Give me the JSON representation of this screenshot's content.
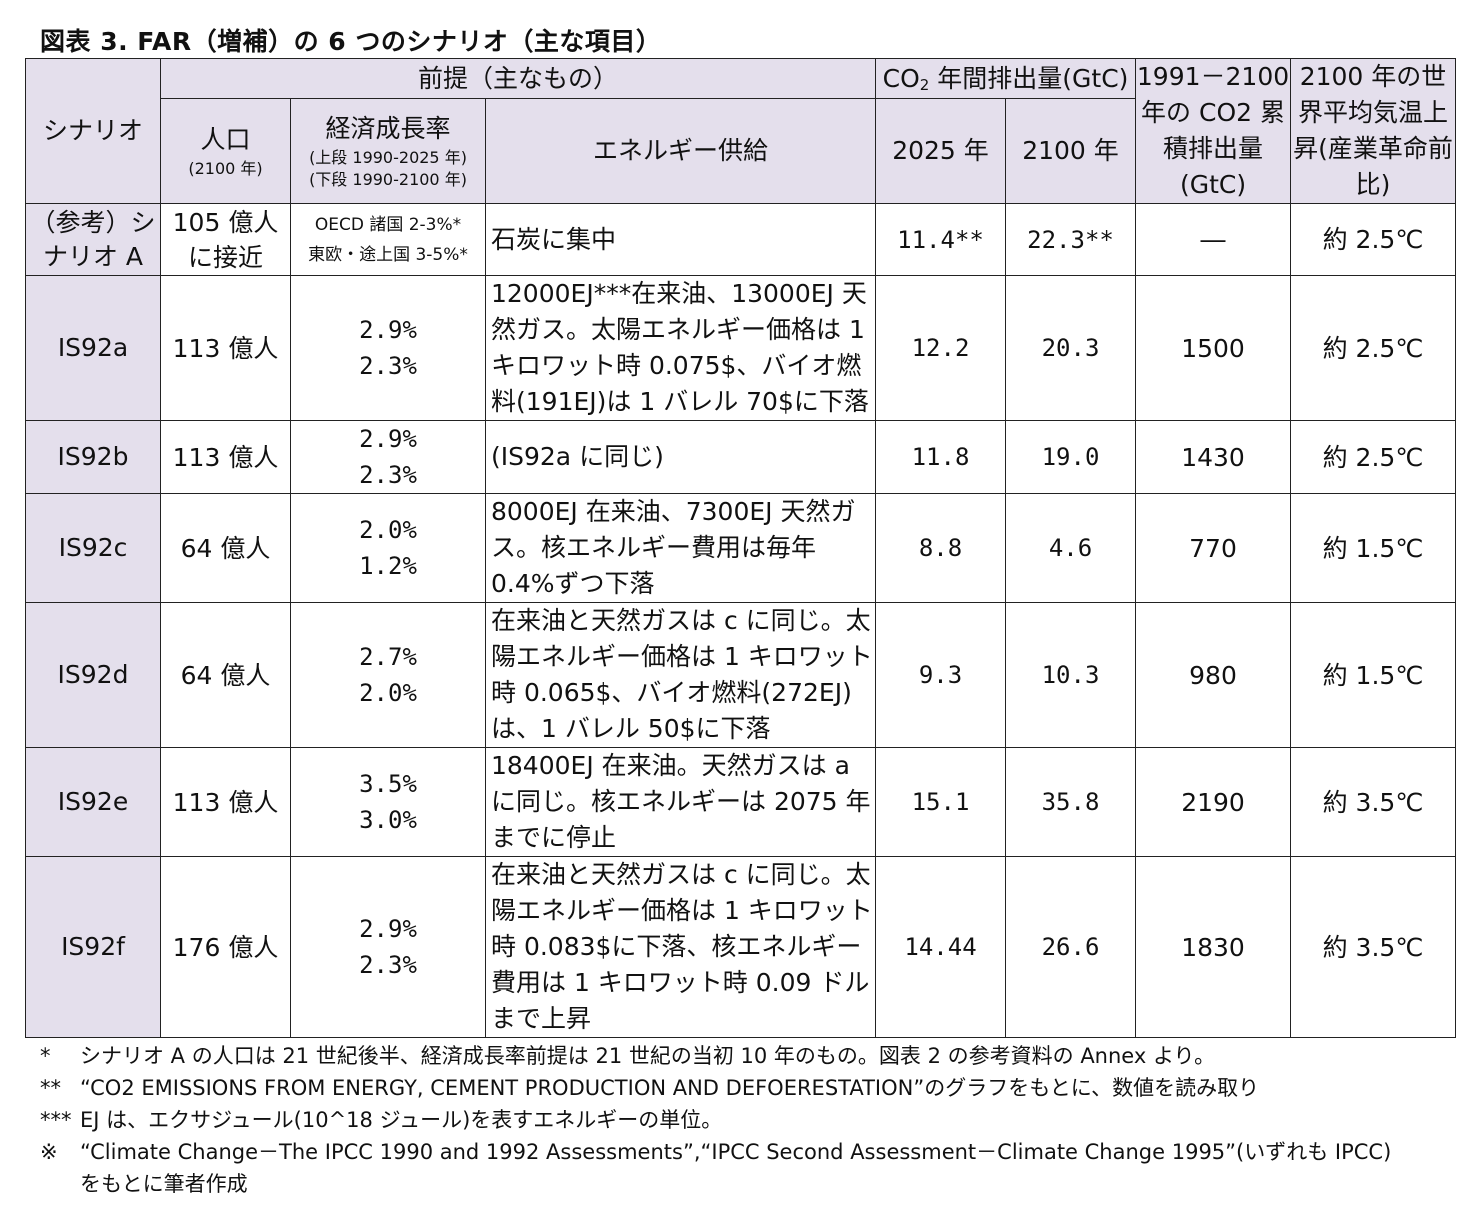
{
  "title": "図表 3. FAR（増補）の 6 つのシナリオ（主な項目）",
  "headers": {
    "scenario": "シナリオ",
    "premise": "前提（主なもの）",
    "population": "人口",
    "population_sub": "(2100 年)",
    "growth": "経済成長率",
    "growth_sub1": "(上段 1990-2025 年)",
    "growth_sub2": "(下段 1990-2100 年)",
    "energy": "エネルギー供給",
    "co2_pre": "CO",
    "co2_subscript": "2",
    "co2_post": " 年間排出量(GtC)",
    "y2025": "2025 年",
    "y2100": "2100 年",
    "cumulative": "1991－2100 年の CO2 累積排出量 (GtC)",
    "temp": "2100 年の世界平均気温上昇(産業革命前比)"
  },
  "rows": [
    {
      "scenario": "（参考）シナリオ A",
      "population": "105 億人に接近",
      "growth1": "OECD 諸国 2-3%*",
      "growth2": "東欧・途上国 3-5%*",
      "energy": "石炭に集中",
      "e2025": "11.4**",
      "e2100": "22.3**",
      "cumulative": "―",
      "temp": "約 2.5℃"
    },
    {
      "scenario": "IS92a",
      "population": "113 億人",
      "growth1": "2.9%",
      "growth2": "2.3%",
      "energy": "12000EJ***在来油、13000EJ 天然ガス。太陽エネルギー価格は 1 キロワット時 0.075$、バイオ燃料(191EJ)は 1 バレル 70$に下落",
      "e2025": "12.2",
      "e2100": "20.3",
      "cumulative": "1500",
      "temp": "約 2.5℃"
    },
    {
      "scenario": "IS92b",
      "population": "113 億人",
      "growth1": "2.9%",
      "growth2": "2.3%",
      "energy": "(IS92a に同じ)",
      "e2025": "11.8",
      "e2100": "19.0",
      "cumulative": "1430",
      "temp": "約 2.5℃"
    },
    {
      "scenario": "IS92c",
      "population": "64 億人",
      "growth1": "2.0%",
      "growth2": "1.2%",
      "energy": "8000EJ 在来油、7300EJ 天然ガス。核エネルギー費用は毎年 0.4%ずつ下落",
      "e2025": "8.8",
      "e2100": "4.6",
      "cumulative": "770",
      "temp": "約 1.5℃"
    },
    {
      "scenario": "IS92d",
      "population": "64 億人",
      "growth1": "2.7%",
      "growth2": "2.0%",
      "energy": "在来油と天然ガスは c に同じ。太陽エネルギー価格は 1 キロワット時 0.065$、バイオ燃料(272EJ)は、1 バレル 50$に下落",
      "e2025": "9.3",
      "e2100": "10.3",
      "cumulative": "980",
      "temp": "約 1.5℃"
    },
    {
      "scenario": "IS92e",
      "population": "113 億人",
      "growth1": "3.5%",
      "growth2": "3.0%",
      "energy": "18400EJ 在来油。天然ガスは a に同じ。核エネルギーは 2075 年までに停止",
      "e2025": "15.1",
      "e2100": "35.8",
      "cumulative": "2190",
      "temp": "約 3.5℃"
    },
    {
      "scenario": "IS92f",
      "population": "176 億人",
      "growth1": "2.9%",
      "growth2": "2.3%",
      "energy": "在来油と天然ガスは c に同じ。太陽エネルギー価格は 1 キロワット時 0.083$に下落、核エネルギー費用は 1 キロワット時 0.09 ドルまで上昇",
      "e2025": "14.44",
      "e2100": "26.6",
      "cumulative": "1830",
      "temp": "約 3.5℃"
    }
  ],
  "notes": [
    {
      "mark": "*",
      "text": "シナリオ A の人口は 21 世紀後半、経済成長率前提は 21 世紀の当初 10 年のもの。図表 2 の参考資料の Annex より。"
    },
    {
      "mark": "**",
      "text": "“CO2 EMISSIONS FROM ENERGY, CEMENT PRODUCTION AND DEFOERESTATION”のグラフをもとに、数値を読み取り"
    },
    {
      "mark": "***",
      "text": "EJ は、エクサジュール(10^18 ジュール)を表すエネルギーの単位。"
    },
    {
      "mark": "※",
      "text": "“Climate Change－The IPCC 1990 and 1992 Assessments”,“IPCC Second Assessment－Climate Change 1995”(いずれも IPCC)"
    },
    {
      "mark": "",
      "text": "をもとに筆者作成"
    }
  ]
}
